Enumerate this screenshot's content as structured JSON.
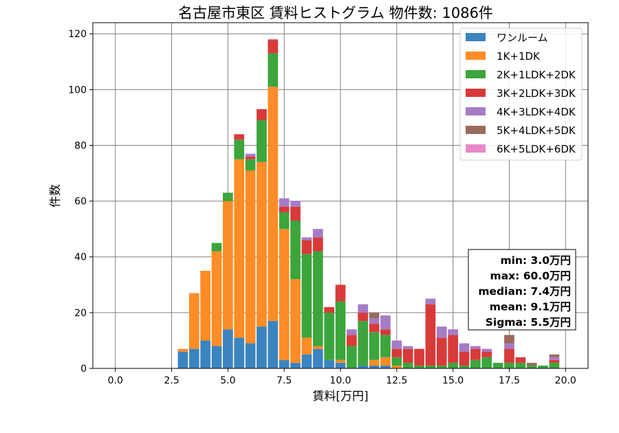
{
  "chart_data": {
    "type": "bar",
    "stacked": true,
    "title": "名古屋市東区 賃料ヒストグラム  物件数: 1086件",
    "xlabel": "賃料[万円]",
    "ylabel": "件数",
    "xlim": [
      -1,
      21
    ],
    "ylim": [
      0,
      124
    ],
    "xticks": [
      "0.0",
      "2.5",
      "5.0",
      "7.5",
      "10.0",
      "12.5",
      "15.0",
      "17.5",
      "20.0"
    ],
    "yticks": [
      "0",
      "20",
      "40",
      "60",
      "80",
      "100",
      "120"
    ],
    "grid": true,
    "legend_position": "top-right",
    "bin_width": 0.5,
    "x": [
      3.0,
      3.5,
      4.0,
      4.5,
      5.0,
      5.5,
      6.0,
      6.5,
      7.0,
      7.5,
      8.0,
      8.5,
      9.0,
      9.5,
      10.0,
      10.5,
      11.0,
      11.5,
      12.0,
      12.5,
      13.0,
      13.5,
      14.0,
      14.5,
      15.0,
      15.5,
      16.0,
      16.5,
      17.0,
      17.5,
      18.0,
      18.5,
      19.0,
      19.5
    ],
    "series": [
      {
        "name": "ワンルーム",
        "color": "#3b84bf",
        "values": [
          6,
          7,
          10,
          8,
          14,
          11,
          9,
          15,
          17,
          3,
          2,
          5,
          7,
          3,
          2,
          0,
          1,
          1,
          1,
          0,
          0,
          0,
          0,
          0,
          0,
          0,
          0,
          0,
          0,
          0,
          0,
          0,
          0,
          0
        ]
      },
      {
        "name": "1K+1DK",
        "color": "#ff8c26",
        "values": [
          1,
          20,
          25,
          34,
          46,
          64,
          62,
          59,
          84,
          47,
          30,
          6,
          1,
          0,
          1,
          0,
          0,
          2,
          3,
          1,
          0,
          0,
          0,
          0,
          0,
          0,
          0,
          0,
          0,
          0,
          0,
          0,
          0,
          0
        ]
      },
      {
        "name": "2K+1LDK+2DK",
        "color": "#3ca53c",
        "values": [
          0,
          0,
          0,
          3,
          3,
          7,
          4,
          15,
          12,
          6,
          21,
          30,
          34,
          17,
          21,
          8,
          16,
          10,
          8,
          3,
          2,
          1,
          1,
          1,
          2,
          1,
          3,
          4,
          2,
          2,
          2,
          1,
          1,
          2
        ]
      },
      {
        "name": "3K+2LDK+3DK",
        "color": "#d83a3a",
        "values": [
          0,
          0,
          0,
          0,
          0,
          2,
          1,
          4,
          5,
          2,
          5,
          5,
          5,
          2,
          6,
          4,
          3,
          3,
          2,
          3,
          5,
          6,
          22,
          10,
          10,
          5,
          4,
          2,
          0,
          5,
          2,
          0,
          0,
          1
        ]
      },
      {
        "name": "4K+3LDK+4DK",
        "color": "#a57cc6",
        "values": [
          0,
          0,
          0,
          0,
          0,
          0,
          1,
          0,
          0,
          3,
          2,
          1,
          3,
          0,
          0,
          2,
          3,
          2,
          5,
          3,
          1,
          0,
          2,
          4,
          2,
          3,
          1,
          1,
          0,
          2,
          0,
          0,
          0,
          1
        ]
      },
      {
        "name": "5K+4LDK+5DK",
        "color": "#9a6a5c",
        "values": [
          0,
          0,
          0,
          0,
          0,
          0,
          0,
          0,
          0,
          0,
          0,
          0,
          0,
          0,
          0,
          0,
          0,
          2,
          0,
          0,
          0,
          0,
          0,
          0,
          0,
          0,
          0,
          0,
          0,
          3,
          0,
          1,
          0,
          1
        ]
      },
      {
        "name": "6K+5LDK+6DK",
        "color": "#e88ac8",
        "values": [
          0,
          0,
          0,
          0,
          0,
          0,
          0,
          0,
          0,
          0,
          0,
          0,
          0,
          0,
          0,
          0,
          0,
          0,
          0,
          0,
          0,
          0,
          0,
          0,
          0,
          0,
          0,
          0,
          0,
          0,
          0,
          0,
          0,
          0
        ]
      }
    ],
    "stats": [
      "min: 3.0万円",
      "max: 60.0万円",
      "median: 7.4万円",
      "mean: 9.1万円",
      "Sigma: 5.5万円"
    ]
  }
}
